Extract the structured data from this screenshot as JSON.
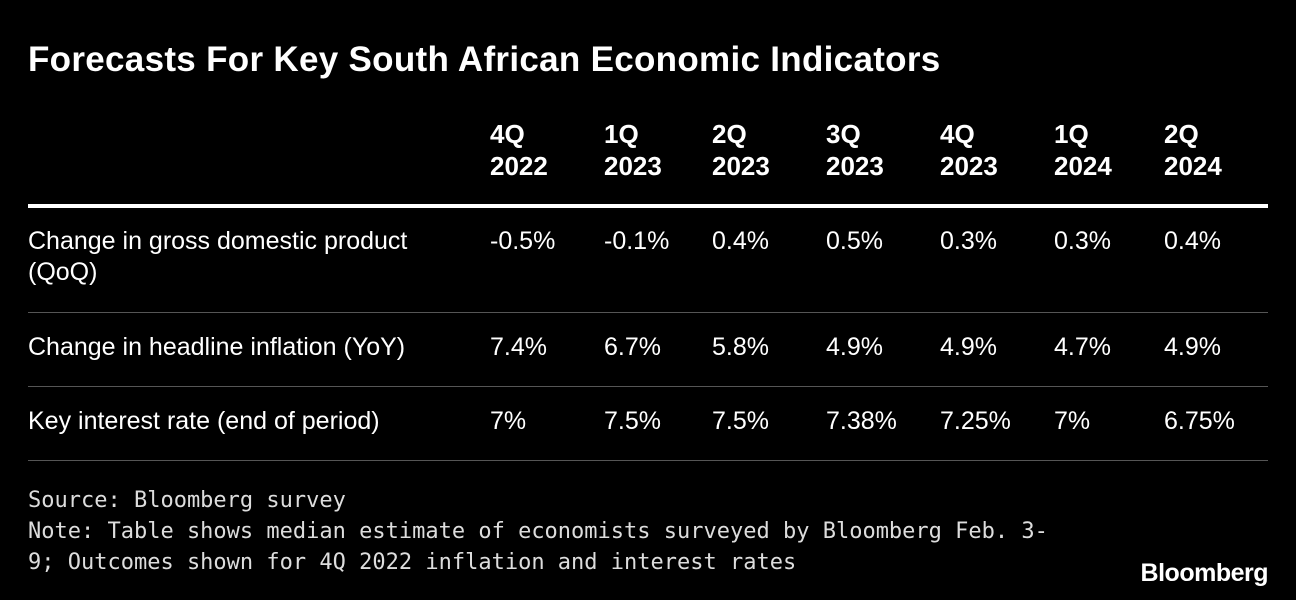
{
  "header": {
    "title": "Forecasts For Key South African Economic Indicators"
  },
  "table": {
    "columns": [
      [
        "4Q",
        "2022"
      ],
      [
        "1Q",
        "2023"
      ],
      [
        "2Q",
        "2023"
      ],
      [
        "3Q",
        "2023"
      ],
      [
        "4Q",
        "2023"
      ],
      [
        "1Q",
        "2024"
      ],
      [
        "2Q",
        "2024"
      ]
    ],
    "rows": [
      [
        "Change in gross domestic product (QoQ)",
        "-0.5%",
        "-0.1%",
        "0.4%",
        "0.5%",
        "0.3%",
        "0.3%",
        "0.4%"
      ],
      [
        "Change in headline inflation (YoY)",
        "7.4%",
        "6.7%",
        "5.8%",
        "4.9%",
        "4.9%",
        "4.7%",
        "4.9%"
      ],
      [
        "Key interest rate (end of period)",
        "7%",
        "7.5%",
        "7.5%",
        "7.38%",
        "7.25%",
        "7%",
        "6.75%"
      ]
    ]
  },
  "footer": {
    "source": "Source: Bloomberg survey",
    "note": "Note: Table shows median estimate of economists surveyed by Bloomberg Feb. 3-9; Outcomes shown for 4Q 2022 inflation and interest rates",
    "logo": "Bloomberg"
  }
}
